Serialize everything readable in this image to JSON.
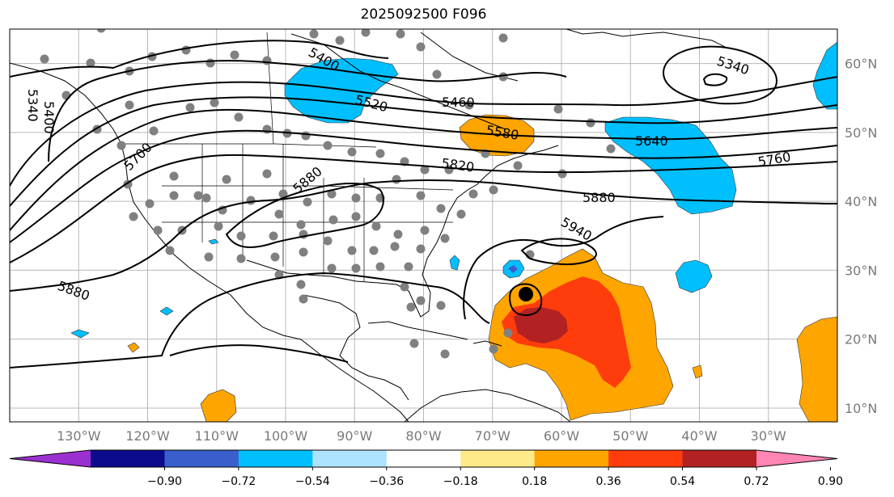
{
  "title": "2025092500 F096",
  "map": {
    "projection": "lat-lon",
    "lon_range": [
      -140,
      -20
    ],
    "lat_range": [
      8,
      65
    ],
    "gridlines": true,
    "x_ticks": [
      "130°W",
      "120°W",
      "110°W",
      "100°W",
      "90°W",
      "80°W",
      "70°W",
      "60°W",
      "50°W",
      "40°W",
      "30°W"
    ],
    "y_ticks": [
      "10°N",
      "20°N",
      "30°N",
      "40°N",
      "50°N",
      "60°N"
    ],
    "storm_marker_icon": "black-dot-icon",
    "station_marker_icon": "gray-dot-icon"
  },
  "contour_labels": [
    "5340",
    "5400",
    "5460",
    "5520",
    "5580",
    "5640",
    "5700",
    "5760",
    "5820",
    "5880",
    "5940"
  ],
  "colorbar": {
    "ticks": [
      "−0.90",
      "−0.72",
      "−0.54",
      "−0.36",
      "−0.18",
      "0.18",
      "0.36",
      "0.54",
      "0.72",
      "0.90"
    ],
    "colors": [
      "#9b30d0",
      "#0b0b8c",
      "#3a5fcd",
      "#00bfff",
      "#aee3ff",
      "#ffffff",
      "#ffea8a",
      "#ffa500",
      "#ff3d0c",
      "#b22222",
      "#ff85b4"
    ]
  }
}
